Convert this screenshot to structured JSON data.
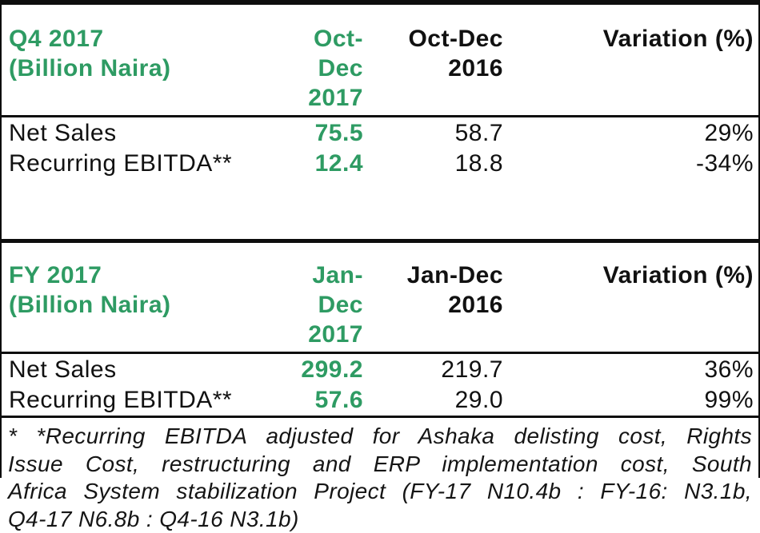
{
  "theme": {
    "accent_green": "#2e9b63",
    "text_color": "#111111",
    "rule_color": "#0d0d0d",
    "background": "#ffffff"
  },
  "tables": [
    {
      "title": "Q4 2017",
      "subtitle": "(Billion Naira)",
      "col_current": {
        "line1": "Oct-Dec",
        "line2": "2017"
      },
      "col_prior": {
        "line1": "Oct-Dec",
        "line2": "2016"
      },
      "col_variation": "Variation (%)",
      "rows": [
        {
          "label": "Net Sales",
          "current": "75.5",
          "prior": "58.7",
          "variation": "29%"
        },
        {
          "label": "Recurring EBITDA**",
          "current": "12.4",
          "prior": "18.8",
          "variation": "-34%"
        }
      ]
    },
    {
      "title": "FY 2017",
      "subtitle": "(Billion Naira)",
      "col_current": {
        "line1": "Jan-Dec",
        "line2": "2017"
      },
      "col_prior": {
        "line1": "Jan-Dec",
        "line2": "2016"
      },
      "col_variation": "Variation (%)",
      "rows": [
        {
          "label": "Net Sales",
          "current": "299.2",
          "prior": "219.7",
          "variation": "36%"
        },
        {
          "label": "Recurring EBITDA**",
          "current": "57.6",
          "prior": "29.0",
          "variation": "99%"
        }
      ]
    }
  ],
  "footnote": {
    "full_text": "* *Recurring EBITDA adjusted for Ashaka delisting cost, Rights Issue Cost, restructuring and ERP implementation cost, South Africa System stabilization Project (FY-17 N10.4b : FY-16: N3.1b, Q4-17 N6.8b : Q4-16 N3.1b)",
    "lines": [
      "* *Recurring EBITDA adjusted for Ashaka delisting cost, Rights",
      "Issue Cost, restructuring and ERP implementation cost, South",
      "Africa System stabilization Project (FY-17 N10.4b : FY-16: N3.1b,",
      "Q4-17 N6.8b : Q4-16 N3.1b)"
    ]
  },
  "chart_data": [
    {
      "type": "table",
      "title": "Q4 2017 (Billion Naira)",
      "columns": [
        "",
        "Oct-Dec 2017",
        "Oct-Dec 2016",
        "Variation (%)"
      ],
      "rows": [
        [
          "Net Sales",
          75.5,
          58.7,
          "29%"
        ],
        [
          "Recurring EBITDA**",
          12.4,
          18.8,
          "-34%"
        ]
      ]
    },
    {
      "type": "table",
      "title": "FY 2017 (Billion Naira)",
      "columns": [
        "",
        "Jan-Dec 2017",
        "Jan-Dec 2016",
        "Variation (%)"
      ],
      "rows": [
        [
          "Net Sales",
          299.2,
          219.7,
          "36%"
        ],
        [
          "Recurring EBITDA**",
          57.6,
          29.0,
          "99%"
        ]
      ]
    }
  ]
}
